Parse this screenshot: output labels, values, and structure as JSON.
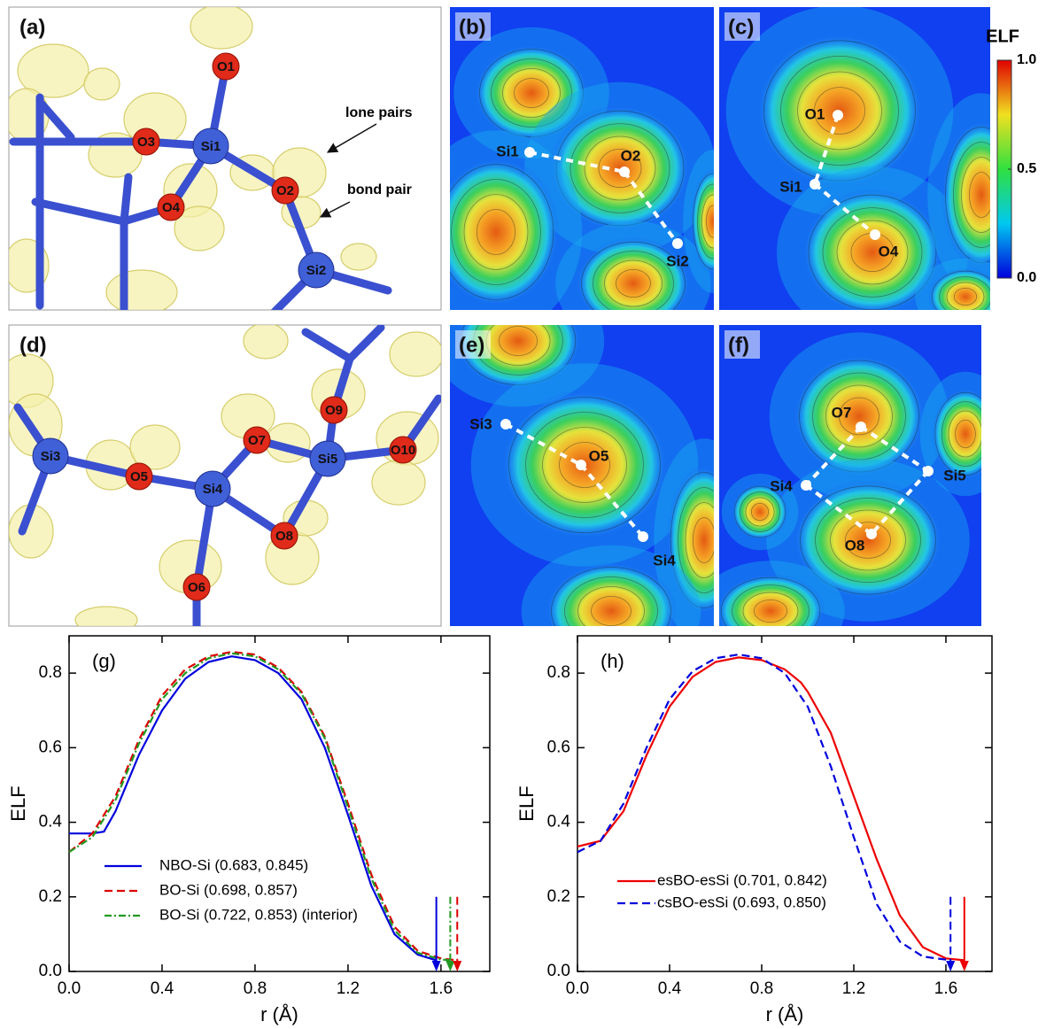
{
  "figure": {
    "panel_a": {
      "label": "(a)",
      "atoms": [
        "O1",
        "O3",
        "Si1",
        "O2",
        "O4",
        "Si2"
      ],
      "notes": [
        "lone pairs",
        "bond pair"
      ]
    },
    "panel_b": {
      "label": "(b)",
      "atoms": [
        "Si1",
        "O2",
        "Si2"
      ]
    },
    "panel_c": {
      "label": "(c)",
      "atoms": [
        "O1",
        "Si1",
        "O4"
      ]
    },
    "panel_d": {
      "label": "(d)",
      "atoms": [
        "O9",
        "O7",
        "Si5",
        "O10",
        "Si3",
        "O5",
        "Si4",
        "O8",
        "O6"
      ]
    },
    "panel_e": {
      "label": "(e)",
      "atoms": [
        "Si3",
        "O5",
        "Si4"
      ]
    },
    "panel_f": {
      "label": "(f)",
      "atoms": [
        "O7",
        "Si4",
        "Si5",
        "O8"
      ]
    },
    "colorbar": {
      "title": "ELF",
      "lim": [
        0,
        1
      ],
      "ticks": [
        {
          "value": 0,
          "label": "0.0"
        },
        0.5,
        {
          "value": 1,
          "label": "1.0"
        }
      ]
    }
  },
  "chart_data": [
    {
      "type": "line",
      "title": "(g)",
      "x_label": "r (Å)",
      "y_label": "ELF",
      "xlim": [
        0,
        1.81
      ],
      "ylim": [
        0,
        0.9
      ],
      "xticks": [
        {
          "value": 0,
          "label": "0.0"
        },
        0.4,
        0.8,
        1.2,
        1.6
      ],
      "yticks": [
        {
          "value": 0,
          "label": "0.0"
        },
        0.2,
        0.4,
        0.6,
        0.8
      ],
      "series": [
        {
          "name": "NBO-Si (0.683, 0.845)",
          "color": "#0000dd",
          "line_style": "solid",
          "x": [
            0,
            0.1,
            0.15,
            0.2,
            0.3,
            0.4,
            0.5,
            0.6,
            0.7,
            0.8,
            0.9,
            1.0,
            1.1,
            1.2,
            1.3,
            1.4,
            1.5,
            1.58
          ],
          "values": [
            0.37,
            0.37,
            0.375,
            0.43,
            0.58,
            0.7,
            0.785,
            0.83,
            0.845,
            0.835,
            0.8,
            0.73,
            0.6,
            0.42,
            0.23,
            0.1,
            0.045,
            0.03
          ]
        },
        {
          "name": "BO-Si (0.698, 0.857)",
          "color": "#dd0000",
          "line_style": "dashed",
          "x": [
            0,
            0.1,
            0.2,
            0.3,
            0.4,
            0.5,
            0.6,
            0.7,
            0.8,
            0.9,
            1.0,
            1.1,
            1.2,
            1.3,
            1.4,
            1.5,
            1.6,
            1.67
          ],
          "values": [
            0.32,
            0.37,
            0.47,
            0.62,
            0.74,
            0.81,
            0.845,
            0.857,
            0.85,
            0.815,
            0.75,
            0.63,
            0.45,
            0.26,
            0.12,
            0.055,
            0.035,
            0.03
          ]
        },
        {
          "name": "BO-Si (0.722, 0.853) (interior)",
          "color": "#229922",
          "line_style": "dashdot",
          "x": [
            0,
            0.1,
            0.2,
            0.3,
            0.4,
            0.5,
            0.6,
            0.7,
            0.8,
            0.9,
            1.0,
            1.1,
            1.2,
            1.3,
            1.4,
            1.5,
            1.6,
            1.64
          ],
          "values": [
            0.32,
            0.36,
            0.46,
            0.61,
            0.73,
            0.8,
            0.84,
            0.853,
            0.845,
            0.81,
            0.745,
            0.625,
            0.44,
            0.25,
            0.11,
            0.05,
            0.032,
            0.03
          ]
        }
      ],
      "arrows": [
        {
          "x": 1.58,
          "y": [
            0.2,
            0
          ],
          "color": "#0000dd",
          "line_style": "solid"
        },
        {
          "x": 1.64,
          "y": [
            0.2,
            0
          ],
          "color": "#229922",
          "line_style": "dashdot"
        },
        {
          "x": 1.67,
          "y": [
            0.2,
            0
          ],
          "color": "#dd0000",
          "line_style": "dashed"
        }
      ]
    },
    {
      "type": "line",
      "title": "(h)",
      "x_label": "r (Å)",
      "y_label": "ELF",
      "xlim": [
        0,
        1.8
      ],
      "ylim": [
        0,
        0.9
      ],
      "xticks": [
        {
          "value": 0,
          "label": "0.0"
        },
        0.4,
        0.8,
        1.2,
        1.6
      ],
      "yticks": [
        {
          "value": 0,
          "label": "0.0"
        },
        0.2,
        0.4,
        0.6,
        0.8
      ],
      "series": [
        {
          "name": "esBO-esSi (0.701, 0.842)",
          "color": "#ee0000",
          "line_style": "solid",
          "x": [
            0,
            0.1,
            0.2,
            0.3,
            0.4,
            0.5,
            0.6,
            0.7,
            0.8,
            0.9,
            0.97,
            1.0,
            1.1,
            1.2,
            1.3,
            1.4,
            1.5,
            1.6,
            1.68
          ],
          "values": [
            0.335,
            0.35,
            0.43,
            0.58,
            0.71,
            0.79,
            0.83,
            0.842,
            0.835,
            0.81,
            0.775,
            0.75,
            0.64,
            0.47,
            0.3,
            0.15,
            0.065,
            0.035,
            0.03
          ]
        },
        {
          "name": "csBO-esSi (0.693, 0.850)",
          "color": "#0000dd",
          "line_style": "dashed",
          "x": [
            0,
            0.1,
            0.2,
            0.3,
            0.4,
            0.5,
            0.6,
            0.7,
            0.8,
            0.9,
            1.0,
            1.1,
            1.2,
            1.3,
            1.4,
            1.5,
            1.62
          ],
          "values": [
            0.32,
            0.35,
            0.45,
            0.6,
            0.73,
            0.805,
            0.84,
            0.85,
            0.84,
            0.8,
            0.71,
            0.55,
            0.36,
            0.18,
            0.08,
            0.04,
            0.03
          ]
        }
      ],
      "arrows": [
        {
          "x": 1.62,
          "y": [
            0.2,
            0
          ],
          "color": "#0000dd",
          "line_style": "dashed"
        },
        {
          "x": 1.68,
          "y": [
            0.2,
            0
          ],
          "color": "#ee0000",
          "line_style": "solid"
        }
      ]
    }
  ]
}
